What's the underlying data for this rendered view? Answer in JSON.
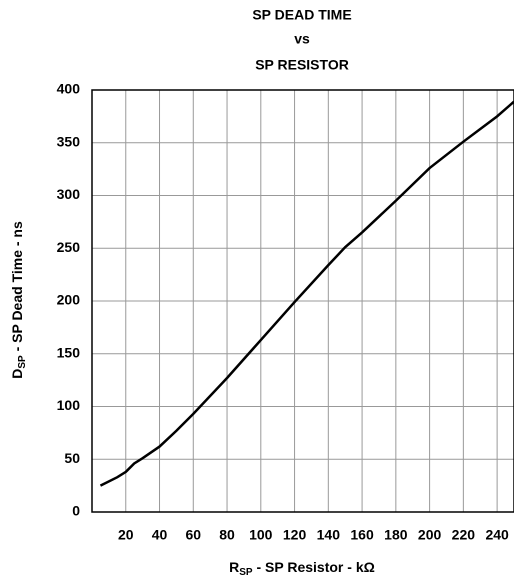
{
  "chart_data": {
    "type": "line",
    "title": [
      "SP DEAD TIME",
      "vs",
      "SP RESISTOR"
    ],
    "xlabel": {
      "main": "R",
      "sub": "SP",
      "rest": " - SP Resistor - kΩ"
    },
    "ylabel": {
      "main": "D",
      "sub": "SP",
      "rest": " - SP Dead Time - ns"
    },
    "x": [
      5,
      15,
      20,
      25,
      30,
      40,
      50,
      60,
      80,
      100,
      120,
      140,
      150,
      160,
      180,
      200,
      220,
      240,
      250
    ],
    "series": [
      {
        "color": "#000000",
        "values": [
          25,
          33,
          38,
          46,
          51,
          62,
          77,
          93,
          127,
          163,
          199,
          234,
          251,
          265,
          295,
          326,
          351,
          375,
          389
        ]
      }
    ],
    "xlim": [
      0,
      250
    ],
    "xticks": [
      20,
      40,
      60,
      80,
      100,
      120,
      140,
      160,
      180,
      200,
      220,
      240
    ],
    "ylim": [
      0,
      400
    ],
    "yticks": [
      0,
      50,
      100,
      150,
      200,
      250,
      300,
      350,
      400
    ],
    "grid": true
  }
}
